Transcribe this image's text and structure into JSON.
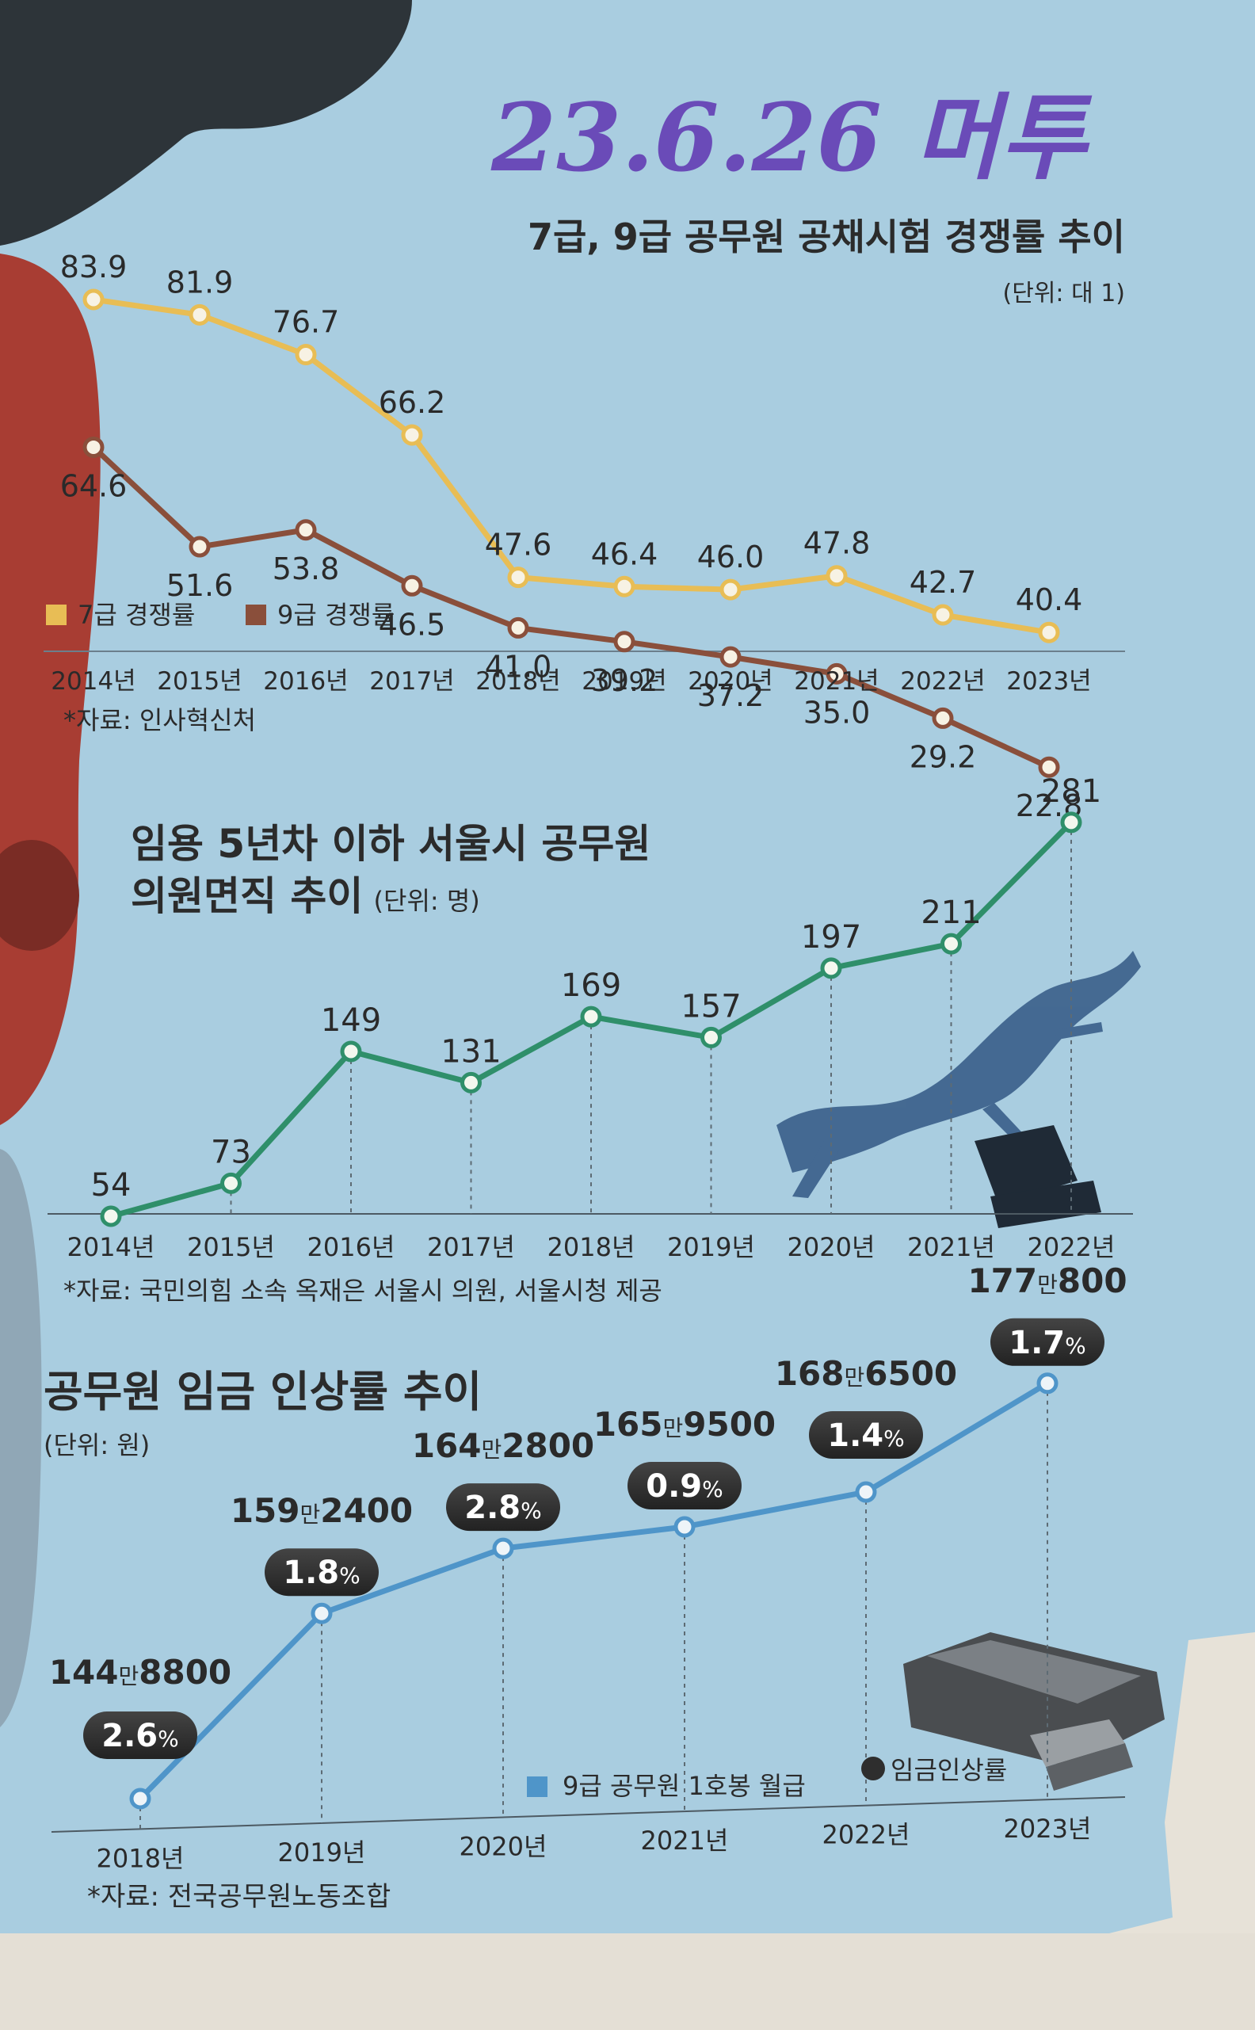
{
  "handwritten_note": "23.6.26 머투",
  "colors": {
    "grade7": "#e8bd55",
    "grade9": "#8a4f3b",
    "seoul_line": "#2f8f6a",
    "wage_line": "#4f95c9",
    "pill": "#2e2e2e",
    "panel": "#a9cde0"
  },
  "chart_data": [
    {
      "type": "line",
      "title": "7급, 9급 공무원 공채시험 경쟁률 추이",
      "unit": "(단위: 대 1)",
      "categories": [
        "2014년",
        "2015년",
        "2016년",
        "2017년",
        "2018년",
        "2019년",
        "2020년",
        "2021년",
        "2022년",
        "2023년"
      ],
      "series": [
        {
          "name": "7급 경쟁률",
          "values": [
            83.9,
            81.9,
            76.7,
            66.2,
            47.6,
            46.4,
            46.0,
            47.8,
            42.7,
            40.4
          ]
        },
        {
          "name": "9급 경쟁률",
          "values": [
            64.6,
            51.6,
            53.8,
            46.5,
            41.0,
            39.2,
            37.2,
            35.0,
            29.2,
            22.8
          ]
        }
      ],
      "value_labels": [
        [
          "83.9",
          "81.9",
          "76.7",
          "66.2",
          "47.6",
          "46.4",
          "46.0",
          "47.8",
          "42.7",
          "40.4"
        ],
        [
          "64.6",
          "51.6",
          "53.8",
          "46.5",
          "41.0",
          "39.2",
          "37.2",
          "35.0",
          "29.2",
          "22.8"
        ]
      ],
      "legend_position": "bottom-left",
      "source": "*자료: 인사혁신처"
    },
    {
      "type": "line",
      "title_lines": [
        "임용 5년차 이하 서울시 공무원",
        "의원면직 추이"
      ],
      "unit": "(단위: 명)",
      "categories": [
        "2014년",
        "2015년",
        "2016년",
        "2017년",
        "2018년",
        "2019년",
        "2020년",
        "2021년",
        "2022년"
      ],
      "series": [
        {
          "values": [
            54,
            73,
            149,
            131,
            169,
            157,
            197,
            211,
            281
          ]
        }
      ],
      "value_labels": [
        "54",
        "73",
        "149",
        "131",
        "169",
        "157",
        "197",
        "211",
        "281"
      ],
      "source": "*자료: 국민의힘 소속 옥재은 서울시 의원, 서울시청 제공"
    },
    {
      "type": "line",
      "title": "공무원 임금 인상률 추이",
      "unit": "(단위: 원)",
      "categories": [
        "2018년",
        "2019년",
        "2020년",
        "2021년",
        "2022년",
        "2023년"
      ],
      "series": [
        {
          "name": "9급 공무원 1호봉 월급",
          "values": [
            1448800,
            1592400,
            1642800,
            1659500,
            1686500,
            1770800
          ]
        },
        {
          "name": "임금인상률",
          "values": [
            2.6,
            1.8,
            2.8,
            0.9,
            1.4,
            1.7
          ]
        }
      ],
      "salary_labels": [
        {
          "main": "144",
          "man": "만",
          "rest": "8800"
        },
        {
          "main": "159",
          "man": "만",
          "rest": "2400"
        },
        {
          "main": "164",
          "man": "만",
          "rest": "2800"
        },
        {
          "main": "165",
          "man": "만",
          "rest": "9500"
        },
        {
          "main": "168",
          "man": "만",
          "rest": "6500"
        },
        {
          "main": "177",
          "man": "만",
          "rest": "800"
        }
      ],
      "rate_labels": [
        "2.6",
        "1.8",
        "2.8",
        "0.9",
        "1.4",
        "1.7"
      ],
      "percent_sign": "%",
      "legend_position": "bottom-right",
      "source": "*자료: 전국공무원노동조합"
    }
  ]
}
